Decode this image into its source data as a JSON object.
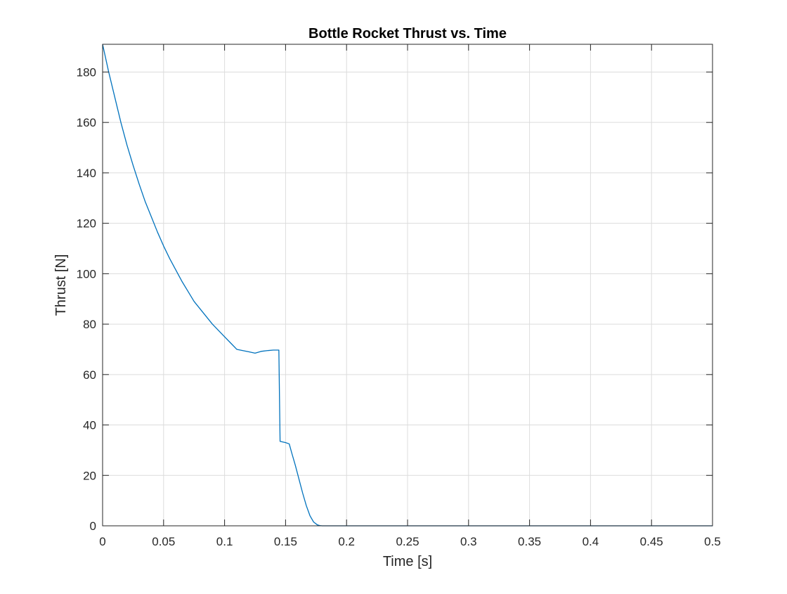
{
  "chart_data": {
    "type": "line",
    "title": "Bottle Rocket Thrust vs. Time",
    "xlabel": "Time [s]",
    "ylabel": "Thrust [N]",
    "xlim": [
      0,
      0.5
    ],
    "ylim": [
      0,
      191
    ],
    "xticks": [
      0,
      0.05,
      0.1,
      0.15,
      0.2,
      0.25,
      0.3,
      0.35,
      0.4,
      0.45,
      0.5
    ],
    "xtick_labels": [
      "0",
      "0.05",
      "0.1",
      "0.15",
      "0.2",
      "0.25",
      "0.3",
      "0.35",
      "0.4",
      "0.45",
      "0.5"
    ],
    "yticks": [
      0,
      20,
      40,
      60,
      80,
      100,
      120,
      140,
      160,
      180
    ],
    "ytick_labels": [
      "0",
      "20",
      "40",
      "60",
      "80",
      "100",
      "120",
      "140",
      "160",
      "180"
    ],
    "grid": true,
    "box": true,
    "colors": {
      "line": "#0072BD",
      "axes": "#262626",
      "grid": "#dcdcdc"
    },
    "series": [
      {
        "x": [
          0,
          0.005,
          0.01,
          0.015,
          0.02,
          0.025,
          0.03,
          0.035,
          0.04,
          0.045,
          0.05,
          0.055,
          0.06,
          0.065,
          0.07,
          0.075,
          0.08,
          0.085,
          0.09,
          0.095,
          0.1,
          0.105,
          0.11,
          0.115,
          0.12,
          0.125,
          0.13,
          0.135,
          0.14,
          0.1445,
          0.1455,
          0.15,
          0.153,
          0.155,
          0.158,
          0.161,
          0.164,
          0.167,
          0.17,
          0.173,
          0.176,
          0.178,
          0.18,
          0.182,
          0.185,
          0.2,
          0.25,
          0.3,
          0.35,
          0.4,
          0.45,
          0.5
        ],
        "y": [
          191,
          180,
          170,
          160,
          151,
          143,
          135.5,
          128.5,
          122.5,
          116.5,
          111,
          106,
          101.5,
          97,
          93,
          89,
          86,
          83,
          80,
          77.5,
          75,
          72.5,
          70,
          69.5,
          69,
          68.5,
          69.2,
          69.5,
          69.7,
          69.7,
          33.5,
          33,
          32.5,
          29,
          24,
          18.5,
          13,
          8,
          4,
          1.5,
          0.4,
          0.1,
          0,
          0,
          0,
          0,
          0,
          0,
          0,
          0,
          0,
          0
        ]
      }
    ]
  }
}
